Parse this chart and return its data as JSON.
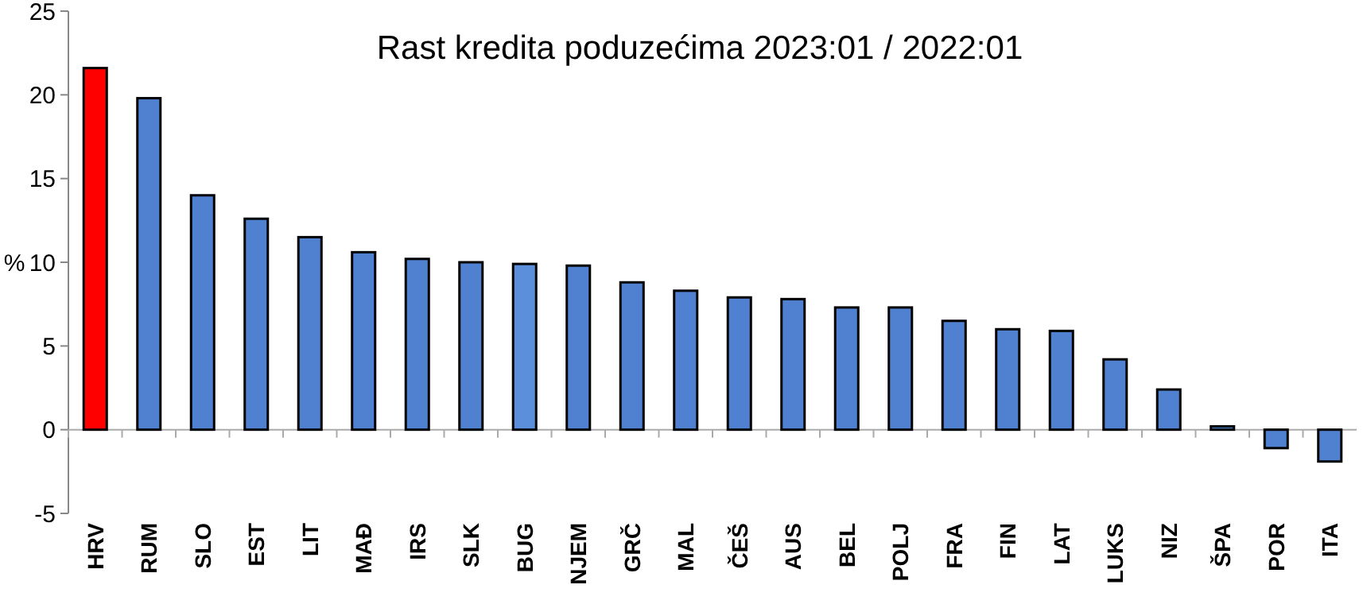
{
  "chart_data": {
    "type": "bar",
    "title": "Rast kredita poduzećima 2023:01 / 2022:01",
    "ylabel": "%",
    "categories": [
      "HRV",
      "RUM",
      "SLO",
      "EST",
      "LIT",
      "MAĐ",
      "IRS",
      "SLK",
      "BUG",
      "NJEM",
      "GRČ",
      "MAL",
      "ČEŠ",
      "AUS",
      "BEL",
      "POLJ",
      "FRA",
      "FIN",
      "LAT",
      "LUKS",
      "NIZ",
      "ŠPA",
      "POR",
      "ITA"
    ],
    "values": [
      21.6,
      19.8,
      14.0,
      12.6,
      11.5,
      10.6,
      10.2,
      10.0,
      9.9,
      9.8,
      8.8,
      8.3,
      7.9,
      7.8,
      7.3,
      7.3,
      6.5,
      6.0,
      5.9,
      4.2,
      2.4,
      0.2,
      -1.1,
      -1.9
    ],
    "colors": [
      "#ff0000",
      "#4f81d0",
      "#4f81d0",
      "#4f81d0",
      "#4f81d0",
      "#4f81d0",
      "#4f81d0",
      "#4f81d0",
      "#5b8fdc",
      "#4f81d0",
      "#4f81d0",
      "#4f81d0",
      "#4f81d0",
      "#4f81d0",
      "#4f81d0",
      "#4f81d0",
      "#4f81d0",
      "#4f81d0",
      "#4f81d0",
      "#4f81d0",
      "#4f81d0",
      "#4f81d0",
      "#4f81d0",
      "#4f81d0"
    ],
    "ylim": [
      -5,
      25
    ],
    "yticks": [
      -5,
      0,
      5,
      10,
      15,
      20,
      25
    ]
  }
}
